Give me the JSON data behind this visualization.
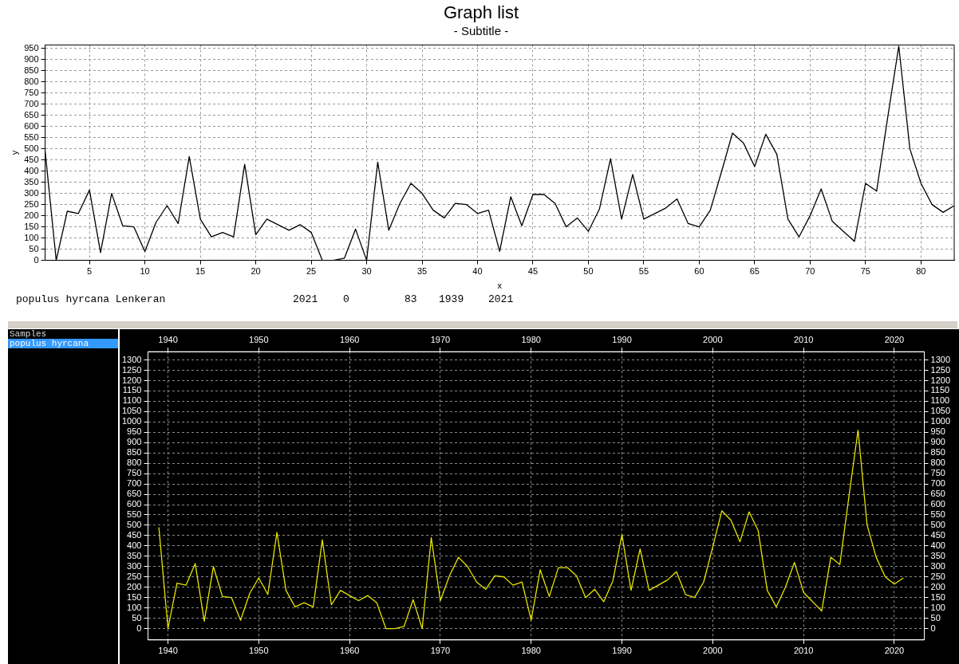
{
  "chart_data": [
    {
      "type": "line",
      "title": "Graph list",
      "subtitle": "- Subtitle -",
      "xlabel": "x",
      "ylabel": "y",
      "grid": true,
      "x": [
        1,
        2,
        3,
        4,
        5,
        6,
        7,
        8,
        9,
        10,
        11,
        12,
        13,
        14,
        15,
        16,
        17,
        18,
        19,
        20,
        21,
        22,
        23,
        24,
        25,
        26,
        27,
        28,
        29,
        30,
        31,
        32,
        33,
        34,
        35,
        36,
        37,
        38,
        39,
        40,
        41,
        42,
        43,
        44,
        45,
        46,
        47,
        48,
        49,
        50,
        51,
        52,
        53,
        54,
        55,
        56,
        57,
        58,
        59,
        60,
        61,
        62,
        63,
        64,
        65,
        66,
        67,
        68,
        69,
        70,
        71,
        72,
        73,
        74,
        75,
        76,
        77,
        78,
        79,
        80,
        81,
        82,
        83
      ],
      "series": [
        {
          "color": "#000000",
          "values": [
            490,
            0,
            220,
            210,
            315,
            35,
            300,
            155,
            150,
            40,
            170,
            245,
            165,
            465,
            185,
            105,
            125,
            105,
            430,
            115,
            185,
            160,
            135,
            160,
            125,
            0,
            0,
            10,
            140,
            0,
            440,
            135,
            255,
            345,
            300,
            225,
            190,
            255,
            250,
            210,
            225,
            40,
            285,
            155,
            295,
            295,
            255,
            150,
            190,
            130,
            230,
            455,
            185,
            385,
            185,
            210,
            235,
            275,
            165,
            150,
            225,
            395,
            570,
            525,
            420,
            565,
            475,
            185,
            105,
            200,
            320,
            175,
            130,
            85,
            345,
            310,
            640,
            960,
            500,
            345,
            250,
            215,
            245
          ]
        }
      ],
      "xlim": [
        1,
        83
      ],
      "xticks": [
        5,
        10,
        15,
        20,
        25,
        30,
        35,
        40,
        45,
        50,
        55,
        60,
        65,
        70,
        75,
        80
      ],
      "ylim": [
        0,
        965
      ],
      "yticks": [
        0,
        50,
        100,
        150,
        200,
        250,
        300,
        350,
        400,
        450,
        500,
        550,
        600,
        650,
        700,
        750,
        800,
        850,
        900,
        950
      ],
      "annotations": [
        "populus hyrcana Lenkeran",
        "2021",
        "0",
        "83",
        "1939",
        "2021"
      ]
    },
    {
      "type": "line",
      "grid": true,
      "x": [
        1939,
        1940,
        1941,
        1942,
        1943,
        1944,
        1945,
        1946,
        1947,
        1948,
        1949,
        1950,
        1951,
        1952,
        1953,
        1954,
        1955,
        1956,
        1957,
        1958,
        1959,
        1960,
        1961,
        1962,
        1963,
        1964,
        1965,
        1966,
        1967,
        1968,
        1969,
        1970,
        1971,
        1972,
        1973,
        1974,
        1975,
        1976,
        1977,
        1978,
        1979,
        1980,
        1981,
        1982,
        1983,
        1984,
        1985,
        1986,
        1987,
        1988,
        1989,
        1990,
        1991,
        1992,
        1993,
        1994,
        1995,
        1996,
        1997,
        1998,
        1999,
        2000,
        2001,
        2002,
        2003,
        2004,
        2005,
        2006,
        2007,
        2008,
        2009,
        2010,
        2011,
        2012,
        2013,
        2014,
        2015,
        2016,
        2017,
        2018,
        2019,
        2020,
        2021
      ],
      "series": [
        {
          "color": "#e6e600",
          "values": [
            490,
            0,
            220,
            210,
            315,
            35,
            300,
            155,
            150,
            40,
            170,
            245,
            165,
            465,
            185,
            105,
            125,
            105,
            430,
            115,
            185,
            160,
            135,
            160,
            125,
            0,
            0,
            10,
            140,
            0,
            440,
            135,
            255,
            345,
            300,
            225,
            190,
            255,
            250,
            210,
            225,
            40,
            285,
            155,
            295,
            295,
            255,
            150,
            190,
            130,
            230,
            455,
            185,
            385,
            185,
            210,
            235,
            275,
            165,
            150,
            225,
            395,
            570,
            525,
            420,
            565,
            475,
            185,
            105,
            200,
            320,
            175,
            130,
            85,
            345,
            310,
            640,
            960,
            500,
            345,
            250,
            215,
            245
          ]
        }
      ],
      "xlim": [
        1937.8,
        2023.3
      ],
      "xticks": [
        1940,
        1950,
        1960,
        1970,
        1980,
        1990,
        2000,
        2010,
        2020
      ],
      "x2lim": [
        1937.8,
        2023.3
      ],
      "x2ticks": [
        1940,
        1950,
        1960,
        1970,
        1980,
        1990,
        2000,
        2010,
        2020
      ],
      "ylim": [
        -55,
        1340
      ],
      "yticks": [
        0,
        50,
        100,
        150,
        200,
        250,
        300,
        350,
        400,
        450,
        500,
        550,
        600,
        650,
        700,
        750,
        800,
        850,
        900,
        950,
        1000,
        1050,
        1100,
        1150,
        1200,
        1250,
        1300
      ],
      "y2lim": [
        -55,
        1340
      ],
      "y2ticks": [
        0,
        50,
        100,
        150,
        200,
        250,
        300,
        350,
        400,
        450,
        500,
        550,
        600,
        650,
        700,
        750,
        800,
        850,
        900,
        950,
        1000,
        1050,
        1100,
        1150,
        1200,
        1250,
        1300
      ],
      "annotations": [
        "Samples",
        "populus hyrcana"
      ]
    }
  ]
}
